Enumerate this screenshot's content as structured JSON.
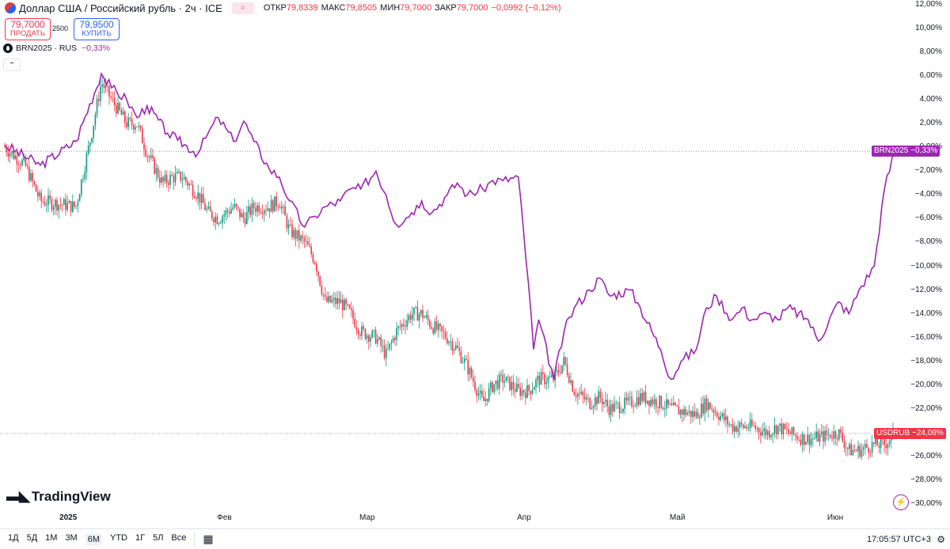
{
  "header": {
    "title": "Доллар США / Российский рубль · 2ч · ICE",
    "compare_badge": "≈",
    "ohlc": [
      {
        "label": "ОТКР",
        "value": "79,8339"
      },
      {
        "label": "МАКС",
        "value": "79,8505"
      },
      {
        "label": "МИН",
        "value": "79,7000"
      },
      {
        "label": "ЗАКР",
        "value": "79,7000"
      },
      {
        "label": "",
        "value": "−0,0992 (−0,12%)"
      }
    ]
  },
  "trade": {
    "sell_price": "79,7000",
    "sell_label": "ПРОДАТЬ",
    "spread": "2500",
    "buy_price": "79,9500",
    "buy_label": "КУПИТЬ"
  },
  "compare": {
    "symbol": "BRN2025 · RUS",
    "change": "−0,33%"
  },
  "collapse_label": "⌃",
  "logo_text": "TradingView",
  "tags": {
    "brn_name": "BRN2025",
    "brn_value": "−0,33%",
    "usd_name": "USDRUB",
    "usd_value": "−24,08%"
  },
  "bottom": {
    "ranges": [
      "1Д",
      "5Д",
      "1М",
      "3М",
      "6М",
      "YTD",
      "1Г",
      "5Л",
      "Все"
    ],
    "active_range": "6М",
    "clock": "17:05:57 UTC+3"
  },
  "colors": {
    "brn": "#9c27b0",
    "up": "#089981",
    "down": "#f23645",
    "brn_tag": "#9c27b0",
    "usd_tag": "#f23645"
  },
  "chart_data": {
    "type": "line",
    "y_unit": "%",
    "ylim": [
      -30,
      12
    ],
    "y_ticks": [
      "12,00%",
      "10,00%",
      "8,00%",
      "6,00%",
      "4,00%",
      "2,00%",
      "0,00%",
      "−2,00%",
      "−4,00%",
      "−6,00%",
      "−8,00%",
      "−10,00%",
      "−12,00%",
      "−14,00%",
      "−16,00%",
      "−18,00%",
      "−20,00%",
      "−22,00%",
      "−24,00%",
      "−26,00%",
      "−28,00%",
      "−30,00%"
    ],
    "x_labels": [
      "2025",
      "Фев",
      "Мар",
      "Апр",
      "Май",
      "Июн"
    ],
    "series": [
      {
        "name": "BRN2025",
        "style": "line",
        "x": [
          "2024-12-20",
          "2024-12-27",
          "2025-01-03",
          "2025-01-08",
          "2025-01-10",
          "2025-01-13",
          "2025-01-15",
          "2025-01-17",
          "2025-01-21",
          "2025-01-23",
          "2025-01-27",
          "2025-01-29",
          "2025-01-31",
          "2025-02-03",
          "2025-02-05",
          "2025-02-07",
          "2025-02-10",
          "2025-02-12",
          "2025-02-14",
          "2025-02-17",
          "2025-02-19",
          "2025-02-21",
          "2025-02-24",
          "2025-02-26",
          "2025-02-28",
          "2025-03-03",
          "2025-03-05",
          "2025-03-07",
          "2025-03-10",
          "2025-03-12",
          "2025-03-14",
          "2025-03-17",
          "2025-03-19",
          "2025-03-21",
          "2025-03-24",
          "2025-03-26",
          "2025-03-28",
          "2025-03-31",
          "2025-04-02",
          "2025-04-03",
          "2025-04-04",
          "2025-04-07",
          "2025-04-09",
          "2025-04-11",
          "2025-04-14",
          "2025-04-16",
          "2025-04-18",
          "2025-04-22",
          "2025-04-24",
          "2025-04-28",
          "2025-04-30",
          "2025-05-02",
          "2025-05-05",
          "2025-05-07",
          "2025-05-09",
          "2025-05-12",
          "2025-05-14",
          "2025-05-16",
          "2025-05-19",
          "2025-05-21",
          "2025-05-23",
          "2025-05-27",
          "2025-05-29",
          "2025-06-02",
          "2025-06-04",
          "2025-06-06",
          "2025-06-09",
          "2025-06-11",
          "2025-06-13"
        ],
        "values": [
          0.2,
          -1.5,
          0.5,
          6.2,
          5.0,
          4.0,
          2.5,
          3.5,
          1.2,
          0.6,
          -0.5,
          1.2,
          2.5,
          0.5,
          2.2,
          0.5,
          -1.8,
          -2.5,
          -4.5,
          -6.7,
          -5.8,
          -5.0,
          -4.5,
          -3.5,
          -3.5,
          -2.0,
          -4.0,
          -6.5,
          -5.5,
          -4.5,
          -5.5,
          -4.0,
          -3.0,
          -4.0,
          -3.5,
          -2.8,
          -2.8,
          -2.5,
          -11.5,
          -17.0,
          -14.5,
          -19.5,
          -15.5,
          -13.5,
          -12.0,
          -11.0,
          -12.5,
          -12.0,
          -13.5,
          -17.0,
          -19.5,
          -18.0,
          -17.0,
          -13.5,
          -12.5,
          -14.5,
          -13.5,
          -14.5,
          -14.0,
          -14.5,
          -13.5,
          -14.5,
          -16.3,
          -13.0,
          -14.0,
          -12.0,
          -10.0,
          -3.5,
          -0.33
        ]
      },
      {
        "name": "USDRUB",
        "style": "candles",
        "x": [
          "2024-12-20",
          "2024-12-24",
          "2024-12-27",
          "2025-01-03",
          "2025-01-06",
          "2025-01-08",
          "2025-01-10",
          "2025-01-13",
          "2025-01-15",
          "2025-01-17",
          "2025-01-20",
          "2025-01-22",
          "2025-01-24",
          "2025-01-27",
          "2025-01-29",
          "2025-01-31",
          "2025-02-03",
          "2025-02-05",
          "2025-02-07",
          "2025-02-10",
          "2025-02-12",
          "2025-02-14",
          "2025-02-17",
          "2025-02-19",
          "2025-02-21",
          "2025-02-24",
          "2025-02-26",
          "2025-02-28",
          "2025-03-03",
          "2025-03-05",
          "2025-03-07",
          "2025-03-10",
          "2025-03-12",
          "2025-03-14",
          "2025-03-17",
          "2025-03-19",
          "2025-03-21",
          "2025-03-24",
          "2025-03-26",
          "2025-03-28",
          "2025-03-31",
          "2025-04-02",
          "2025-04-04",
          "2025-04-07",
          "2025-04-09",
          "2025-04-11",
          "2025-04-14",
          "2025-04-16",
          "2025-04-18",
          "2025-04-22",
          "2025-04-24",
          "2025-04-28",
          "2025-04-30",
          "2025-05-05",
          "2025-05-07",
          "2025-05-12",
          "2025-05-14",
          "2025-05-16",
          "2025-05-19",
          "2025-05-21",
          "2025-05-23",
          "2025-05-26",
          "2025-05-28",
          "2025-06-02",
          "2025-06-04",
          "2025-06-06",
          "2025-06-09",
          "2025-06-11",
          "2025-06-13"
        ],
        "values": [
          0.0,
          -1.5,
          -4.5,
          -5.0,
          1.0,
          5.5,
          4.0,
          2.0,
          2.0,
          -0.5,
          -3.0,
          -2.5,
          -2.5,
          -4.0,
          -5.5,
          -6.0,
          -5.0,
          -6.0,
          -5.0,
          -5.0,
          -4.5,
          -7.0,
          -8.0,
          -9.5,
          -13.0,
          -13.0,
          -14.0,
          -15.5,
          -16.0,
          -17.5,
          -15.5,
          -14.0,
          -14.0,
          -15.0,
          -16.0,
          -17.0,
          -18.5,
          -21.5,
          -20.0,
          -19.5,
          -20.5,
          -20.5,
          -19.5,
          -19.5,
          -18.0,
          -20.5,
          -21.5,
          -21.0,
          -22.0,
          -21.5,
          -21.0,
          -21.5,
          -22.0,
          -22.5,
          -21.5,
          -23.5,
          -23.5,
          -23.5,
          -24.0,
          -23.5,
          -24.0,
          -24.5,
          -24.5,
          -24.0,
          -25.5,
          -25.5,
          -25.0,
          -25.0,
          -24.08
        ]
      }
    ]
  }
}
